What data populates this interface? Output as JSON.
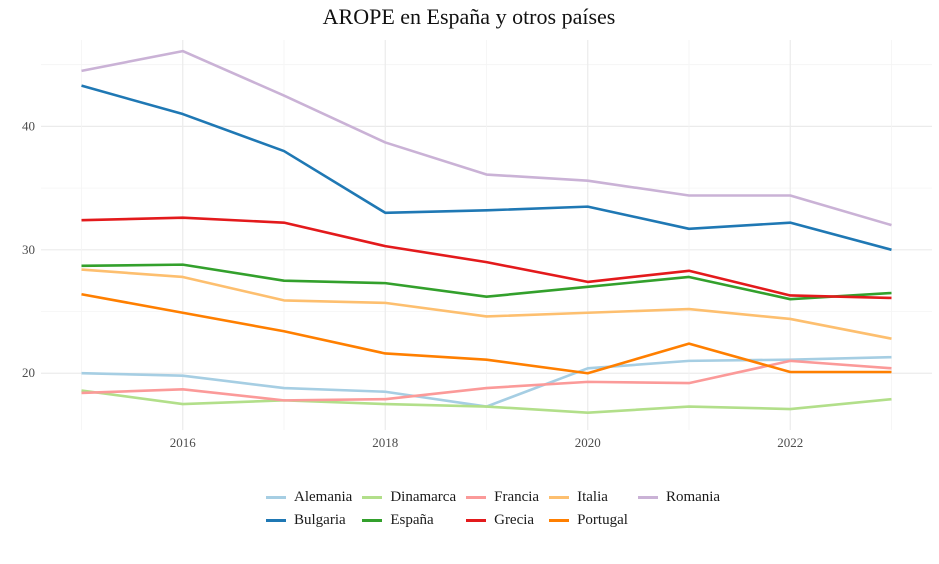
{
  "chart_data": {
    "type": "line",
    "title": "AROPE en España y otros países",
    "xlabel": "",
    "ylabel": "",
    "x": [
      2015,
      2016,
      2017,
      2018,
      2019,
      2020,
      2021,
      2022,
      2023
    ],
    "xticks": [
      "2016",
      "2018",
      "2020",
      "2022"
    ],
    "yticks": [
      "20",
      "30",
      "40"
    ],
    "xlim": [
      2014.6,
      2023.4
    ],
    "ylim": [
      15.4,
      47.0
    ],
    "grid": true,
    "legend_position": "bottom",
    "series": [
      {
        "name": "Alemania",
        "color": "#a6cee3",
        "values": [
          20.0,
          19.8,
          18.8,
          18.5,
          17.3,
          20.4,
          21.0,
          21.1,
          21.3
        ]
      },
      {
        "name": "Bulgaria",
        "color": "#1f78b4",
        "values": [
          43.3,
          41.0,
          38.0,
          33.0,
          33.2,
          33.5,
          31.7,
          32.2,
          30.0
        ]
      },
      {
        "name": "Dinamarca",
        "color": "#b2df8a",
        "values": [
          18.6,
          17.5,
          17.8,
          17.5,
          17.3,
          16.8,
          17.3,
          17.1,
          17.9
        ]
      },
      {
        "name": "España",
        "color": "#33a02c",
        "values": [
          28.7,
          28.8,
          27.5,
          27.3,
          26.2,
          27.0,
          27.8,
          26.0,
          26.5
        ]
      },
      {
        "name": "Francia",
        "color": "#fb9a99",
        "values": [
          18.4,
          18.7,
          17.8,
          17.9,
          18.8,
          19.3,
          19.2,
          21.0,
          20.4
        ]
      },
      {
        "name": "Grecia",
        "color": "#e31a1c",
        "values": [
          32.4,
          32.6,
          32.2,
          30.3,
          29.0,
          27.4,
          28.3,
          26.3,
          26.1
        ]
      },
      {
        "name": "Italia",
        "color": "#fdbf6f",
        "values": [
          28.4,
          27.8,
          25.9,
          25.7,
          24.6,
          24.9,
          25.2,
          24.4,
          22.8
        ]
      },
      {
        "name": "Portugal",
        "color": "#ff7f00",
        "values": [
          26.4,
          24.9,
          23.4,
          21.6,
          21.1,
          20.0,
          22.4,
          20.1,
          20.1
        ]
      },
      {
        "name": "Romania",
        "color": "#cab2d6",
        "values": [
          44.5,
          46.1,
          42.5,
          38.7,
          36.1,
          35.6,
          34.4,
          34.4,
          32.0
        ]
      }
    ]
  }
}
